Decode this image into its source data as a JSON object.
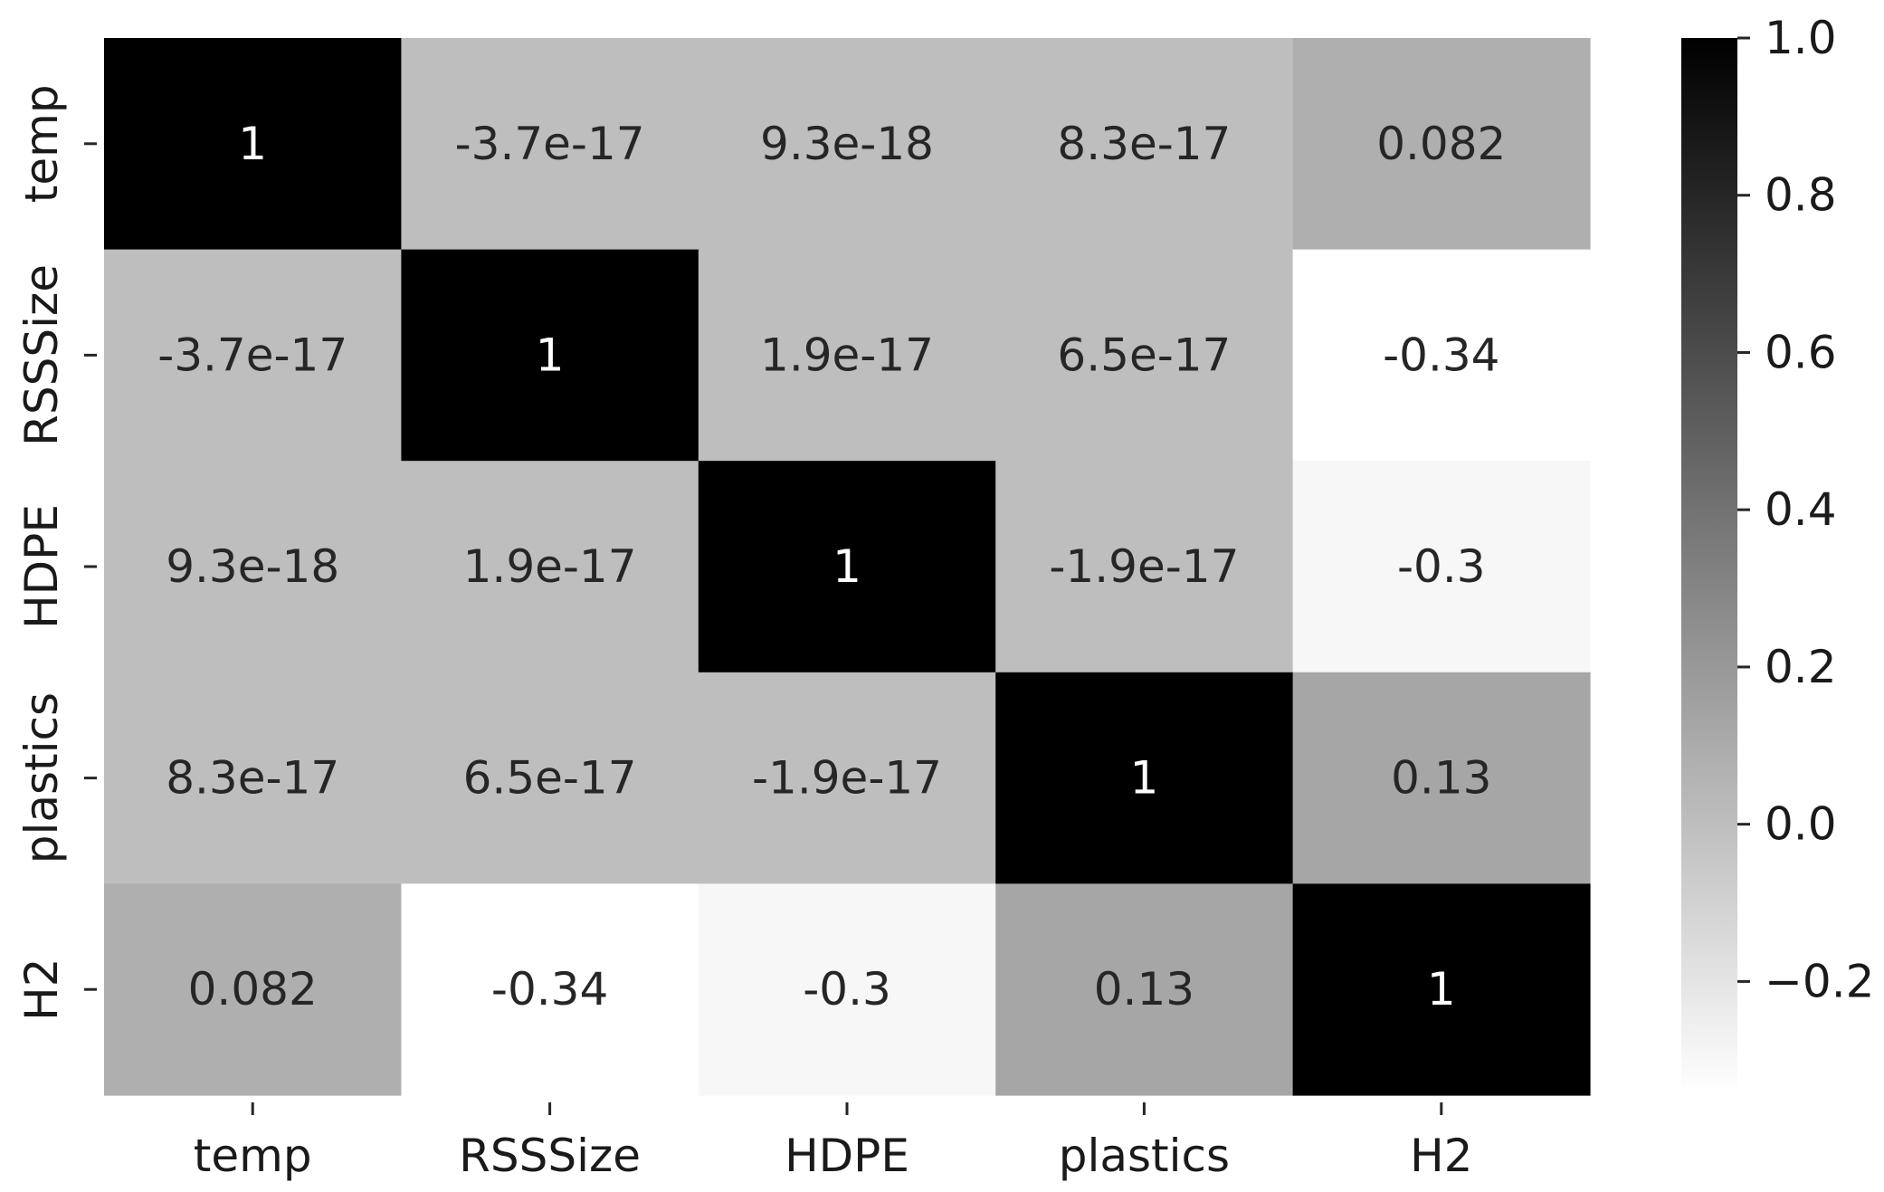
{
  "chart_data": {
    "type": "heatmap",
    "title": "",
    "xlabel": "",
    "ylabel": "",
    "x_categories": [
      "temp",
      "RSSSize",
      "HDPE",
      "plastics",
      "H2"
    ],
    "y_categories": [
      "temp",
      "RSSSize",
      "HDPE",
      "plastics",
      "H2"
    ],
    "values": [
      [
        1,
        -3.7e-17,
        9.3e-18,
        8.3e-17,
        0.082
      ],
      [
        -3.7e-17,
        1,
        1.9e-17,
        6.5e-17,
        -0.34
      ],
      [
        9.3e-18,
        1.9e-17,
        1,
        -1.9e-17,
        -0.3
      ],
      [
        8.3e-17,
        6.5e-17,
        -1.9e-17,
        1,
        0.13
      ],
      [
        0.082,
        -0.34,
        -0.3,
        0.13,
        1
      ]
    ],
    "annotations": [
      [
        "1",
        "-3.7e-17",
        "9.3e-18",
        "8.3e-17",
        "0.082"
      ],
      [
        "-3.7e-17",
        "1",
        "1.9e-17",
        "6.5e-17",
        "-0.34"
      ],
      [
        "9.3e-18",
        "1.9e-17",
        "1",
        "-1.9e-17",
        "-0.3"
      ],
      [
        "8.3e-17",
        "6.5e-17",
        "-1.9e-17",
        "1",
        "0.13"
      ],
      [
        "0.082",
        "-0.34",
        "-0.3",
        "0.13",
        "1"
      ]
    ],
    "colormap": "greys",
    "colormap_low": "#ffffff",
    "colormap_high": "#000000",
    "colorbar": {
      "range": [
        -0.34,
        1.0
      ],
      "ticks": [
        1.0,
        0.8,
        0.6,
        0.4,
        0.2,
        0.0,
        -0.2
      ],
      "tick_labels": [
        "1.0",
        "0.8",
        "0.6",
        "0.4",
        "0.2",
        "0.0",
        "−0.2"
      ]
    },
    "legend": "colorbar-right",
    "grid": false
  }
}
